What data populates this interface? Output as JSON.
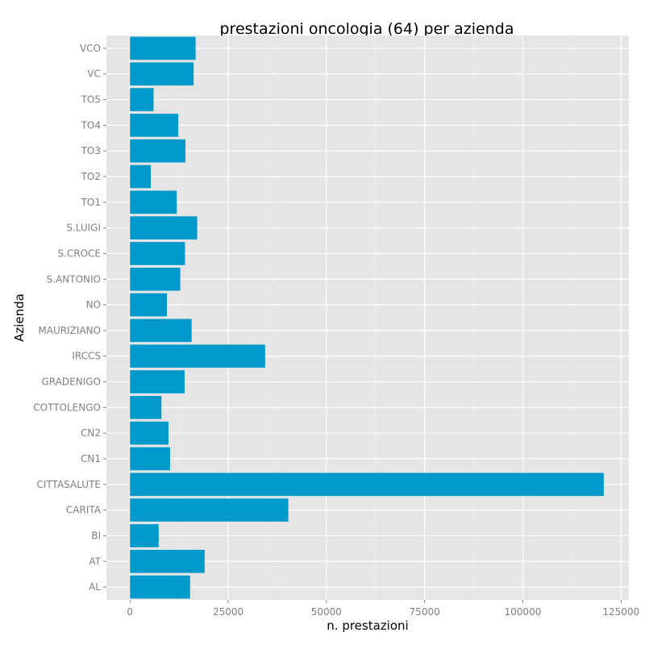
{
  "chart_data": {
    "type": "bar",
    "orientation": "horizontal",
    "title": "prestazioni oncologia (64) per azienda",
    "xlabel": "n. prestazioni",
    "ylabel": "Azienda",
    "xlim": [
      -6000,
      127000
    ],
    "x_ticks": [
      0,
      25000,
      50000,
      75000,
      100000,
      125000
    ],
    "x_tick_labels": [
      "0",
      "25000",
      "50000",
      "75000",
      "100000",
      "125000"
    ],
    "grid": true,
    "legend": "none",
    "bar_color": "#0099cc",
    "panel_color": "#e5e5e5",
    "categories": [
      "AL",
      "AT",
      "BI",
      "CARITA",
      "CITTASALUTE",
      "CN1",
      "CN2",
      "COTTOLENGO",
      "GRADENIGO",
      "IRCCS",
      "MAURIZIANO",
      "NO",
      "S.ANTONIO",
      "S.CROCE",
      "S.LUIGI",
      "TO1",
      "TO2",
      "TO3",
      "TO4",
      "TO5",
      "VC",
      "VCO"
    ],
    "values": [
      15300,
      19000,
      7300,
      40300,
      120600,
      10200,
      9800,
      8000,
      13900,
      34400,
      15700,
      9400,
      12800,
      14000,
      17100,
      11900,
      5300,
      14100,
      12300,
      6000,
      16200,
      16700
    ]
  }
}
